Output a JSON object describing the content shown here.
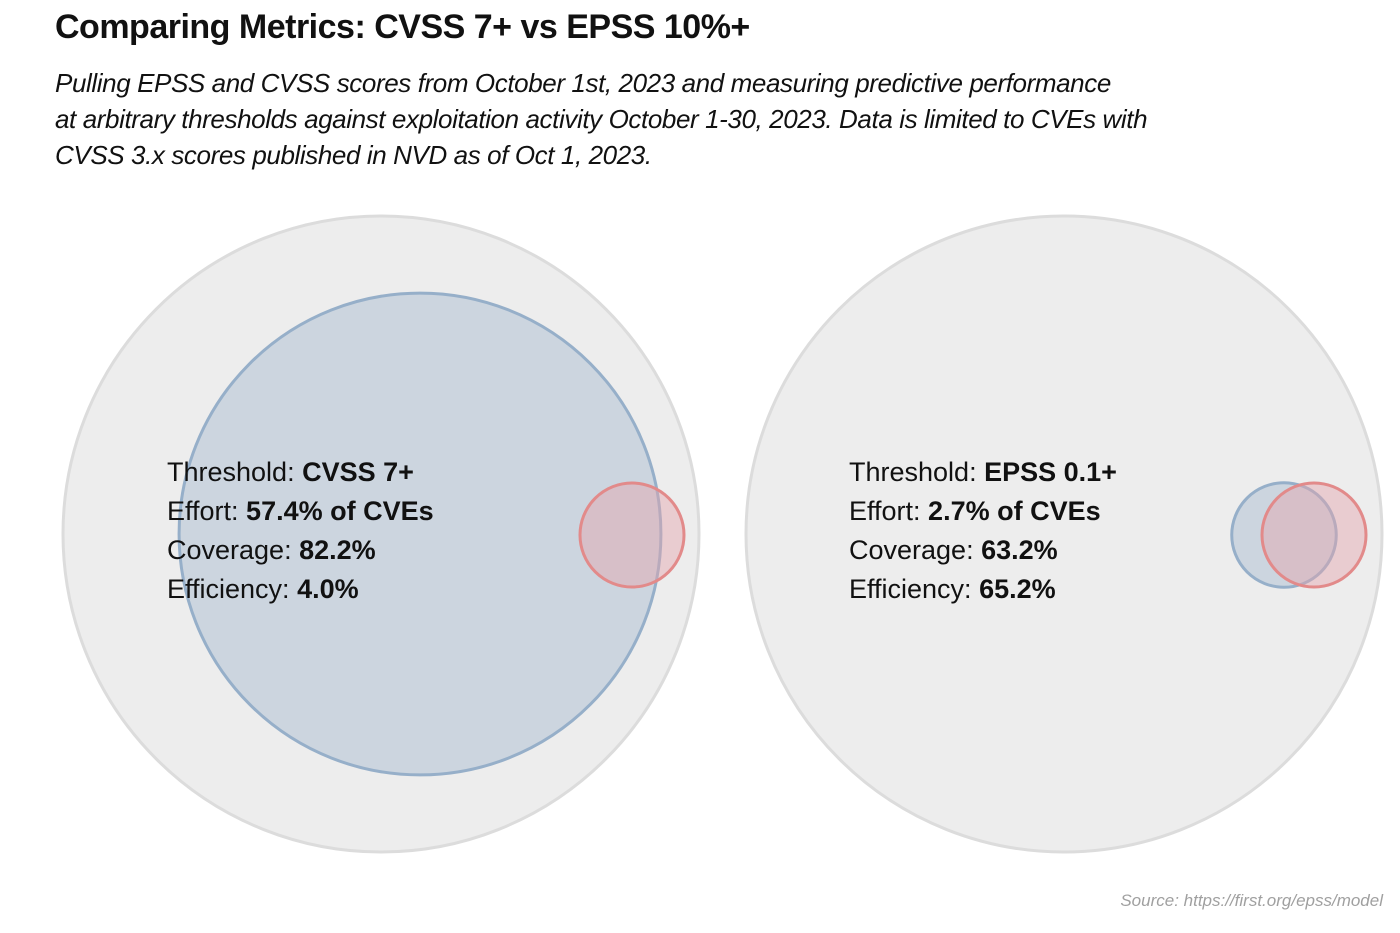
{
  "title": "Comparing Metrics: CVSS 7+ vs EPSS 10%+",
  "subtitle_lines": [
    "Pulling EPSS and CVSS scores from October 1st, 2023 and measuring predictive performance",
    "at arbitrary thresholds against exploitation activity October 1-30, 2023. Data is limited to CVEs with",
    "CVSS 3.x scores published in NVD as of Oct 1, 2023."
  ],
  "source": "Source: https://first.org/epss/model",
  "colors": {
    "population_fill": "#ededed",
    "population_stroke": "#dcdcdc",
    "remediated_fill": "#b5c5d6",
    "remediated_stroke": "#96afc9",
    "exploited_fill": "#e4a5ae",
    "exploited_stroke": "#e28a8a",
    "text": "#111111"
  },
  "chart_data": [
    {
      "type": "venn",
      "labels": [
        {
          "label": "Threshold:",
          "value": "CVSS 7+"
        },
        {
          "label": "Effort:",
          "value": "57.4% of CVEs"
        },
        {
          "label": "Coverage:",
          "value": "82.2%"
        },
        {
          "label": "Efficiency:",
          "value": "4.0%"
        }
      ],
      "effort_pct": 57.4,
      "coverage_pct": 82.2,
      "efficiency_pct": 4.0
    },
    {
      "type": "venn",
      "labels": [
        {
          "label": "Threshold:",
          "value": "EPSS 0.1+"
        },
        {
          "label": "Effort:",
          "value": "2.7% of CVEs"
        },
        {
          "label": "Coverage:",
          "value": "63.2%"
        },
        {
          "label": "Efficiency:",
          "value": "65.2%"
        }
      ],
      "effort_pct": 2.7,
      "coverage_pct": 63.2,
      "efficiency_pct": 65.2
    }
  ]
}
